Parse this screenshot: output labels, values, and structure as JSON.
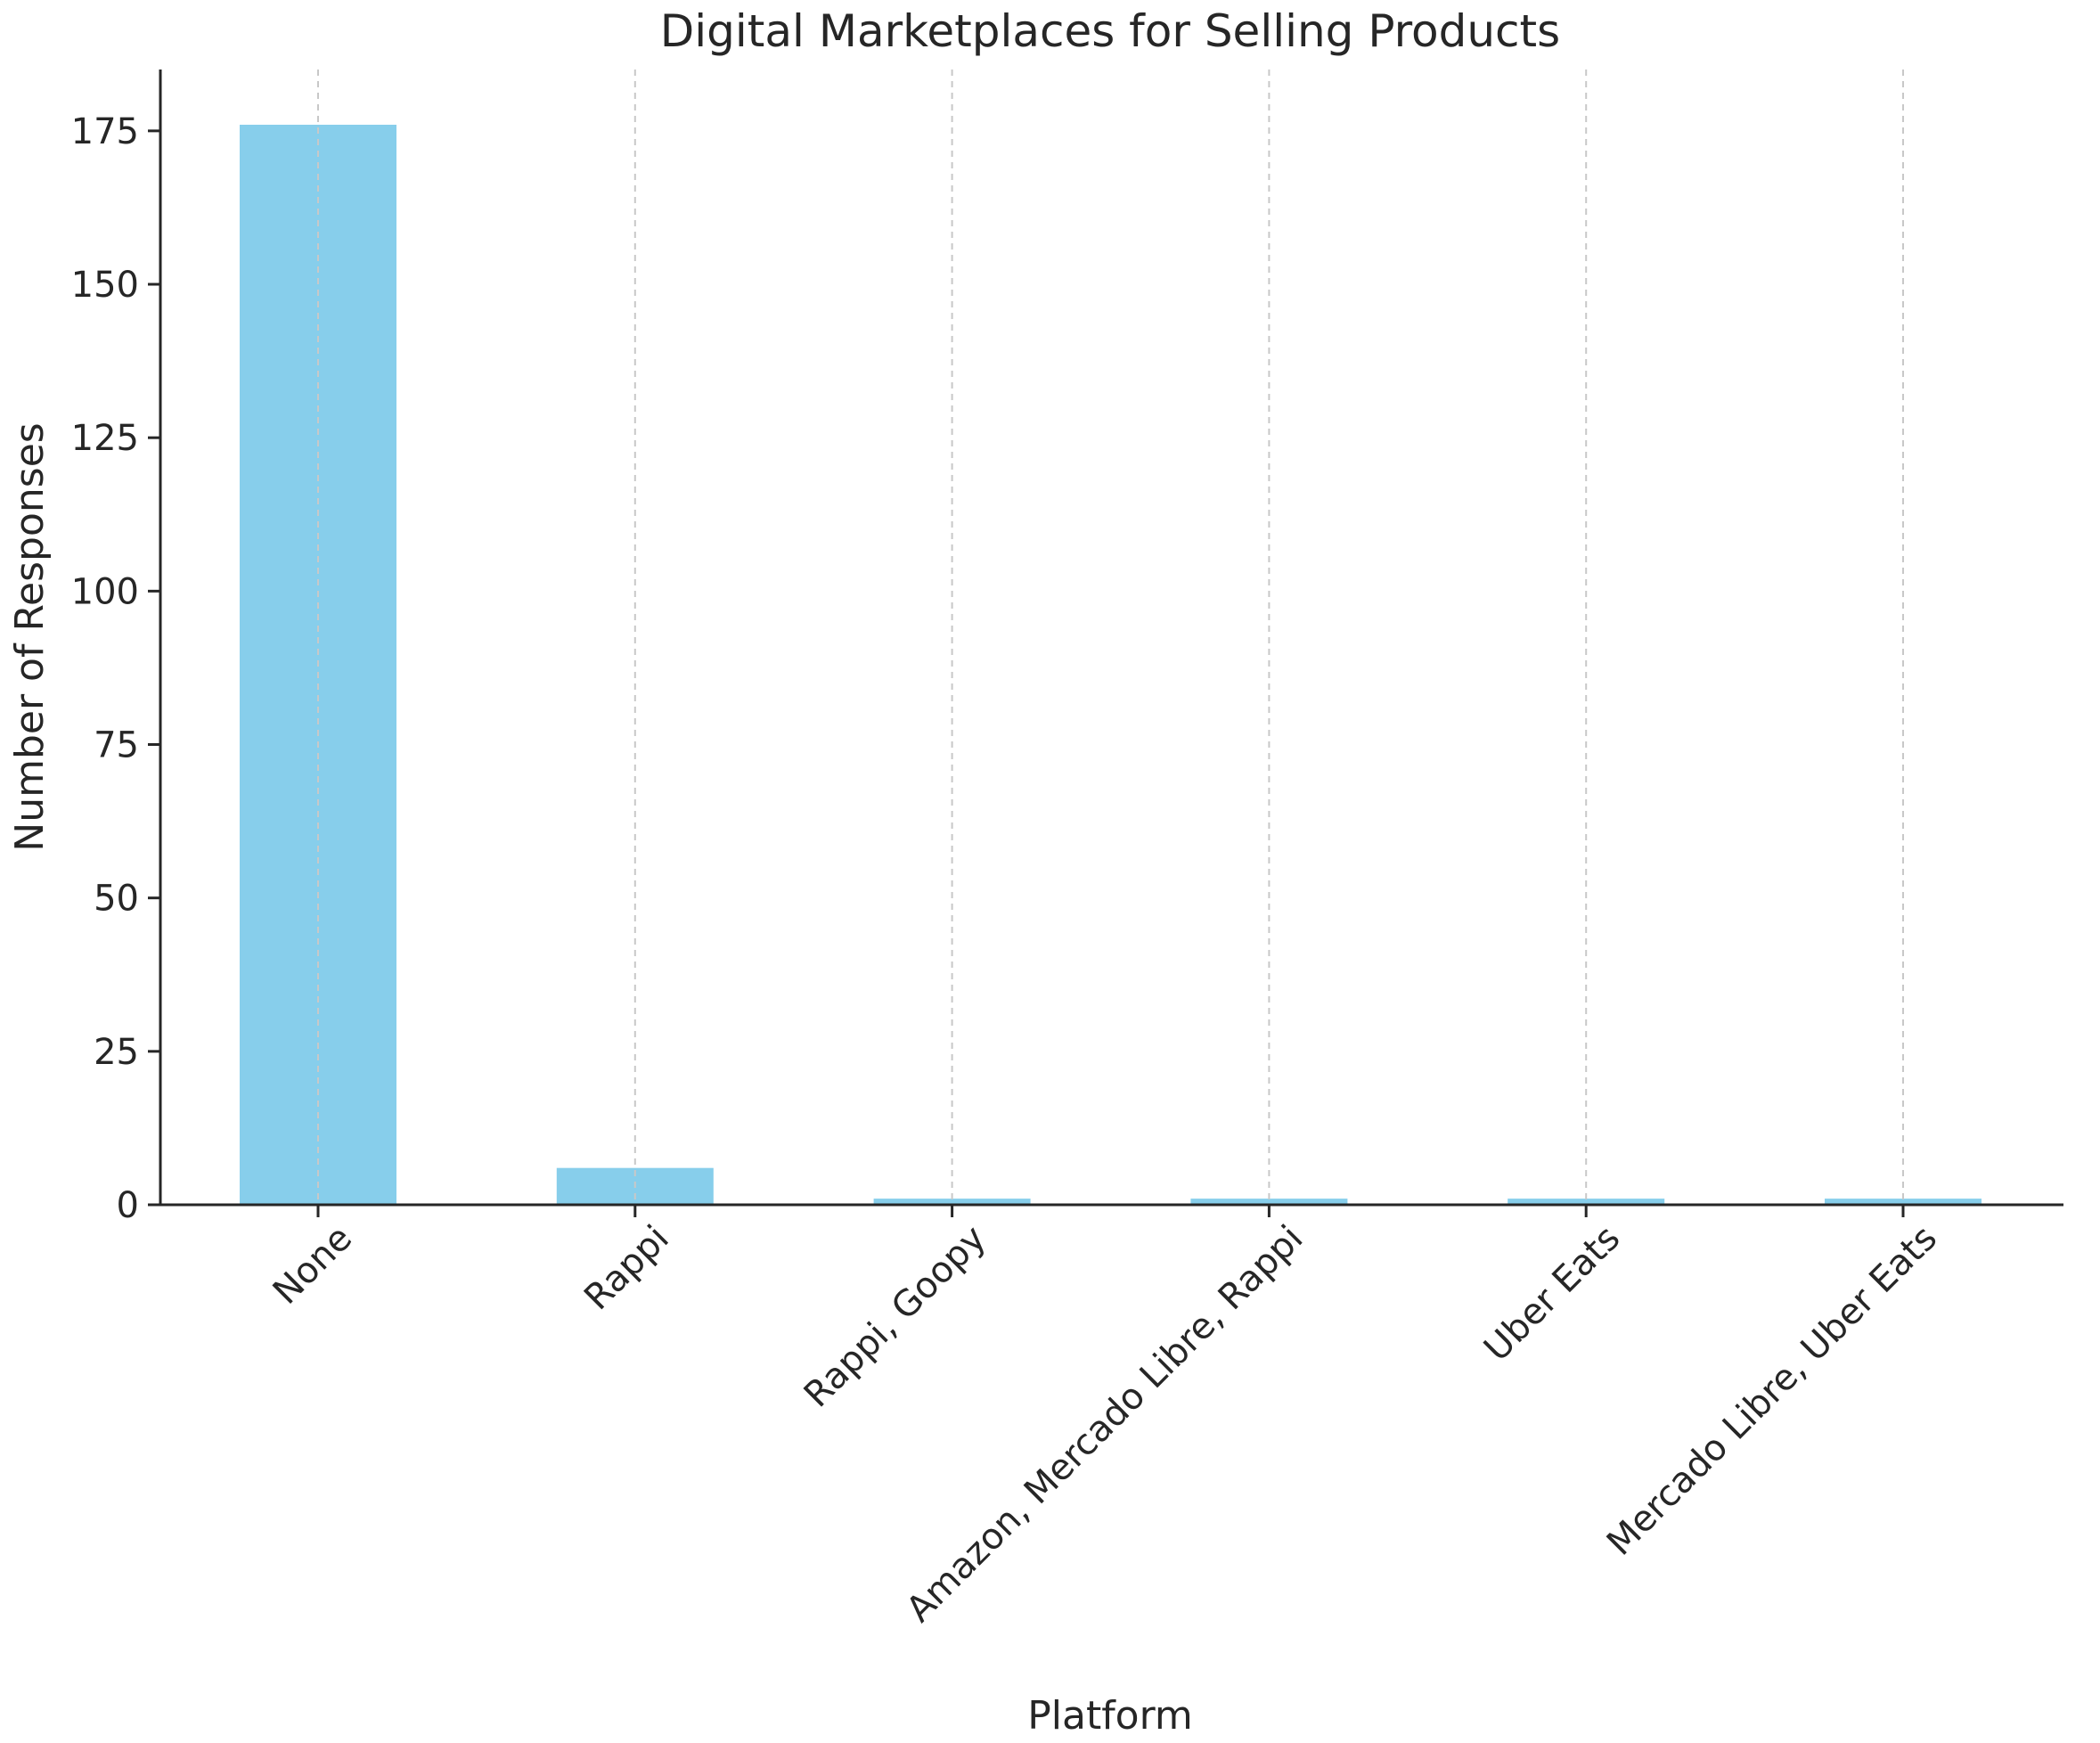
{
  "chart_data": {
    "type": "bar",
    "title": "Digital Marketplaces for Selling Products",
    "xlabel": "Platform",
    "ylabel": "Number of Responses",
    "categories": [
      "None",
      "Rappi",
      "Rappi, Goopy",
      "Amazon, Mercado Libre, Rappi",
      "Uber Eats",
      "Mercado Libre, Uber Eats"
    ],
    "values": [
      176,
      6,
      1,
      1,
      1,
      1
    ],
    "ylim": [
      0,
      185
    ],
    "yticks": [
      0,
      25,
      50,
      75,
      100,
      125,
      150,
      175
    ],
    "bar_color": "#87ceeb",
    "grid": "x-dashed",
    "x_tick_rotation": 45
  }
}
